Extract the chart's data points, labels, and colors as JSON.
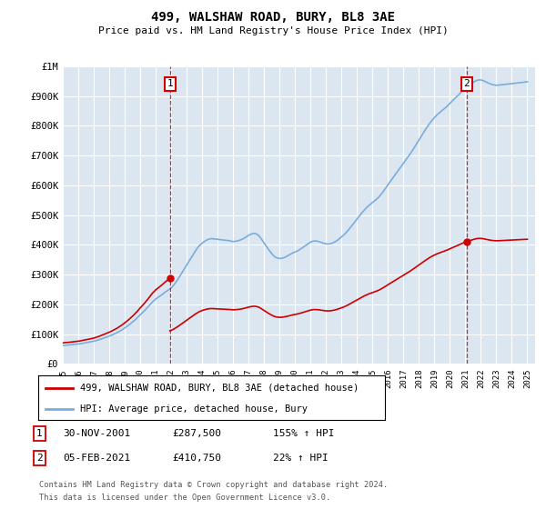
{
  "title": "499, WALSHAW ROAD, BURY, BL8 3AE",
  "subtitle": "Price paid vs. HM Land Registry's House Price Index (HPI)",
  "ylim": [
    0,
    1000000
  ],
  "yticks": [
    0,
    100000,
    200000,
    300000,
    400000,
    500000,
    600000,
    700000,
    800000,
    900000,
    1000000
  ],
  "ytick_labels": [
    "£0",
    "£100K",
    "£200K",
    "£300K",
    "£400K",
    "£500K",
    "£600K",
    "£700K",
    "£800K",
    "£900K",
    "£1M"
  ],
  "xlim_start": 1995.0,
  "xlim_end": 2025.5,
  "plot_bg_color": "#dce6f1",
  "grid_color": "#ffffff",
  "sale1_year": 2001.917,
  "sale1_price": 287500,
  "sale2_year": 2021.09,
  "sale2_price": 410750,
  "sale1_label": "1",
  "sale2_label": "2",
  "sale1_date": "30-NOV-2001",
  "sale2_date": "05-FEB-2021",
  "sale1_price_str": "£287,500",
  "sale2_price_str": "£410,750",
  "sale1_hpi": "155% ↑ HPI",
  "sale2_hpi": "22% ↑ HPI",
  "legend_entry1": "499, WALSHAW ROAD, BURY, BL8 3AE (detached house)",
  "legend_entry2": "HPI: Average price, detached house, Bury",
  "footnote1": "Contains HM Land Registry data © Crown copyright and database right 2024.",
  "footnote2": "This data is licensed under the Open Government Licence v3.0.",
  "red_line_color": "#cc0000",
  "blue_line_color": "#7aaddc",
  "marker_color": "#cc0000",
  "hpi_years": [
    1995.0,
    1995.083,
    1995.167,
    1995.25,
    1995.333,
    1995.417,
    1995.5,
    1995.583,
    1995.667,
    1995.75,
    1995.833,
    1995.917,
    1996.0,
    1996.083,
    1996.167,
    1996.25,
    1996.333,
    1996.417,
    1996.5,
    1996.583,
    1996.667,
    1996.75,
    1996.833,
    1996.917,
    1997.0,
    1997.083,
    1997.167,
    1997.25,
    1997.333,
    1997.417,
    1997.5,
    1997.583,
    1997.667,
    1997.75,
    1997.833,
    1997.917,
    1998.0,
    1998.083,
    1998.167,
    1998.25,
    1998.333,
    1998.417,
    1998.5,
    1998.583,
    1998.667,
    1998.75,
    1998.833,
    1998.917,
    1999.0,
    1999.083,
    1999.167,
    1999.25,
    1999.333,
    1999.417,
    1999.5,
    1999.583,
    1999.667,
    1999.75,
    1999.833,
    1999.917,
    2000.0,
    2000.083,
    2000.167,
    2000.25,
    2000.333,
    2000.417,
    2000.5,
    2000.583,
    2000.667,
    2000.75,
    2000.833,
    2000.917,
    2001.0,
    2001.083,
    2001.167,
    2001.25,
    2001.333,
    2001.417,
    2001.5,
    2001.583,
    2001.667,
    2001.75,
    2001.833,
    2001.917,
    2002.0,
    2002.083,
    2002.167,
    2002.25,
    2002.333,
    2002.417,
    2002.5,
    2002.583,
    2002.667,
    2002.75,
    2002.833,
    2002.917,
    2003.0,
    2003.083,
    2003.167,
    2003.25,
    2003.333,
    2003.417,
    2003.5,
    2003.583,
    2003.667,
    2003.75,
    2003.833,
    2003.917,
    2004.0,
    2004.083,
    2004.167,
    2004.25,
    2004.333,
    2004.417,
    2004.5,
    2004.583,
    2004.667,
    2004.75,
    2004.833,
    2004.917,
    2005.0,
    2005.083,
    2005.167,
    2005.25,
    2005.333,
    2005.417,
    2005.5,
    2005.583,
    2005.667,
    2005.75,
    2005.833,
    2005.917,
    2006.0,
    2006.083,
    2006.167,
    2006.25,
    2006.333,
    2006.417,
    2006.5,
    2006.583,
    2006.667,
    2006.75,
    2006.833,
    2006.917,
    2007.0,
    2007.083,
    2007.167,
    2007.25,
    2007.333,
    2007.417,
    2007.5,
    2007.583,
    2007.667,
    2007.75,
    2007.833,
    2007.917,
    2008.0,
    2008.083,
    2008.167,
    2008.25,
    2008.333,
    2008.417,
    2008.5,
    2008.583,
    2008.667,
    2008.75,
    2008.833,
    2008.917,
    2009.0,
    2009.083,
    2009.167,
    2009.25,
    2009.333,
    2009.417,
    2009.5,
    2009.583,
    2009.667,
    2009.75,
    2009.833,
    2009.917,
    2010.0,
    2010.083,
    2010.167,
    2010.25,
    2010.333,
    2010.417,
    2010.5,
    2010.583,
    2010.667,
    2010.75,
    2010.833,
    2010.917,
    2011.0,
    2011.083,
    2011.167,
    2011.25,
    2011.333,
    2011.417,
    2011.5,
    2011.583,
    2011.667,
    2011.75,
    2011.833,
    2011.917,
    2012.0,
    2012.083,
    2012.167,
    2012.25,
    2012.333,
    2012.417,
    2012.5,
    2012.583,
    2012.667,
    2012.75,
    2012.833,
    2012.917,
    2013.0,
    2013.083,
    2013.167,
    2013.25,
    2013.333,
    2013.417,
    2013.5,
    2013.583,
    2013.667,
    2013.75,
    2013.833,
    2013.917,
    2014.0,
    2014.083,
    2014.167,
    2014.25,
    2014.333,
    2014.417,
    2014.5,
    2014.583,
    2014.667,
    2014.75,
    2014.833,
    2014.917,
    2015.0,
    2015.083,
    2015.167,
    2015.25,
    2015.333,
    2015.417,
    2015.5,
    2015.583,
    2015.667,
    2015.75,
    2015.833,
    2015.917,
    2016.0,
    2016.083,
    2016.167,
    2016.25,
    2016.333,
    2016.417,
    2016.5,
    2016.583,
    2016.667,
    2016.75,
    2016.833,
    2016.917,
    2017.0,
    2017.083,
    2017.167,
    2017.25,
    2017.333,
    2017.417,
    2017.5,
    2017.583,
    2017.667,
    2017.75,
    2017.833,
    2017.917,
    2018.0,
    2018.083,
    2018.167,
    2018.25,
    2018.333,
    2018.417,
    2018.5,
    2018.583,
    2018.667,
    2018.75,
    2018.833,
    2018.917,
    2019.0,
    2019.083,
    2019.167,
    2019.25,
    2019.333,
    2019.417,
    2019.5,
    2019.583,
    2019.667,
    2019.75,
    2019.833,
    2019.917,
    2020.0,
    2020.083,
    2020.167,
    2020.25,
    2020.333,
    2020.417,
    2020.5,
    2020.583,
    2020.667,
    2020.75,
    2020.833,
    2020.917,
    2021.0,
    2021.083,
    2021.167,
    2021.25,
    2021.333,
    2021.417,
    2021.5,
    2021.583,
    2021.667,
    2021.75,
    2021.833,
    2021.917,
    2022.0,
    2022.083,
    2022.167,
    2022.25,
    2022.333,
    2022.417,
    2022.5,
    2022.583,
    2022.667,
    2022.75,
    2022.833,
    2022.917,
    2023.0,
    2023.083,
    2023.167,
    2023.25,
    2023.333,
    2023.417,
    2023.5,
    2023.583,
    2023.667,
    2023.75,
    2023.833,
    2023.917,
    2024.0,
    2024.083,
    2024.167,
    2024.25,
    2024.333,
    2024.417,
    2024.5,
    2024.583,
    2024.667,
    2024.75,
    2024.833,
    2024.917,
    2025.0
  ],
  "hpi_values": [
    62000,
    62500,
    63000,
    63200,
    63500,
    63800,
    64200,
    64600,
    65100,
    65500,
    66000,
    66500,
    67000,
    67500,
    68200,
    69000,
    69800,
    70500,
    71300,
    72000,
    72800,
    73600,
    74400,
    75200,
    76000,
    77200,
    78500,
    79800,
    81200,
    82700,
    84200,
    85700,
    87200,
    88800,
    90400,
    92000,
    93600,
    95200,
    97000,
    99000,
    101000,
    103000,
    105000,
    107500,
    110000,
    112500,
    115000,
    118000,
    121000,
    124000,
    127000,
    130000,
    133500,
    137000,
    140500,
    144000,
    148000,
    152000,
    156000,
    160500,
    165000,
    169000,
    173000,
    177500,
    182000,
    186500,
    191000,
    196000,
    201000,
    206000,
    210500,
    214000,
    218000,
    221000,
    224000,
    227000,
    230000,
    233000,
    236500,
    240000,
    243000,
    246000,
    249000,
    252000,
    255000,
    260000,
    265000,
    271000,
    277000,
    283000,
    290000,
    297000,
    304000,
    311000,
    318000,
    325000,
    332000,
    339000,
    346000,
    353000,
    360000,
    367000,
    374000,
    381000,
    387000,
    393000,
    398000,
    402000,
    406000,
    409000,
    412000,
    415000,
    417000,
    419000,
    420000,
    421000,
    420500,
    420000,
    419500,
    419000,
    418500,
    418000,
    417500,
    417000,
    416500,
    416000,
    415500,
    415000,
    414500,
    414000,
    413000,
    412000,
    411000,
    411500,
    412000,
    413000,
    414000,
    415500,
    417000,
    419000,
    421000,
    423500,
    426000,
    429000,
    432000,
    434000,
    436000,
    437500,
    438500,
    438000,
    436500,
    434000,
    430000,
    425000,
    419000,
    412500,
    406000,
    399000,
    393000,
    387000,
    381000,
    375500,
    370000,
    365000,
    361000,
    358000,
    356000,
    355000,
    354000,
    354500,
    355000,
    356500,
    358000,
    360000,
    362500,
    365000,
    367500,
    370000,
    372500,
    374500,
    376000,
    378000,
    380000,
    382500,
    385000,
    388000,
    391000,
    394000,
    397000,
    400000,
    403000,
    406000,
    409000,
    411000,
    412500,
    413000,
    413000,
    412500,
    411500,
    410000,
    408500,
    407000,
    405500,
    404500,
    403500,
    403000,
    403000,
    403500,
    404500,
    406000,
    408000,
    410500,
    413000,
    416000,
    419500,
    423000,
    426500,
    430000,
    434000,
    438500,
    443000,
    448000,
    453500,
    459000,
    464500,
    470000,
    475500,
    481000,
    486500,
    492000,
    497500,
    503000,
    508500,
    513500,
    518500,
    523000,
    527500,
    531500,
    535000,
    538500,
    542000,
    545500,
    549000,
    552500,
    556500,
    561000,
    566000,
    571500,
    577000,
    583000,
    589000,
    595500,
    602000,
    608000,
    614000,
    620000,
    626000,
    632000,
    638000,
    644000,
    650000,
    656000,
    662000,
    668000,
    674000,
    680000,
    686000,
    692000,
    698000,
    704000,
    710500,
    717000,
    724000,
    731000,
    738000,
    745000,
    752000,
    759000,
    766000,
    773000,
    780000,
    787000,
    793500,
    800000,
    806000,
    812000,
    817500,
    822500,
    827500,
    832000,
    836500,
    840500,
    844000,
    847500,
    851000,
    854500,
    858000,
    862000,
    866000,
    870500,
    875000,
    879500,
    884000,
    888000,
    892000,
    896000,
    900500,
    905000,
    909500,
    914000,
    918000,
    922000,
    925500,
    929000,
    932500,
    936000,
    939000,
    942000,
    945000,
    948000,
    950500,
    952500,
    953500,
    954000,
    953500,
    952500,
    951000,
    949000,
    947000,
    945000,
    943000,
    941000,
    939500,
    938000,
    937000,
    936500,
    936000,
    936000,
    936500,
    937000,
    937500,
    938000,
    938500,
    939000,
    939500,
    940000,
    940500,
    941000,
    941500,
    942000,
    942500,
    943000,
    943500,
    944000,
    944500,
    945000,
    945500,
    946000,
    946500,
    947000,
    947500
  ],
  "red_years_seg1_start": 1995.0,
  "red_years_seg1_end": 2001.917,
  "red_scale_at_sale1": 287500,
  "red_years_seg2_start": 2001.917,
  "red_years_seg2_end": 2021.09,
  "red_scale_at_sale2": 410750,
  "red_years_seg3_start": 2021.09,
  "red_years_seg3_end": 2025.0
}
